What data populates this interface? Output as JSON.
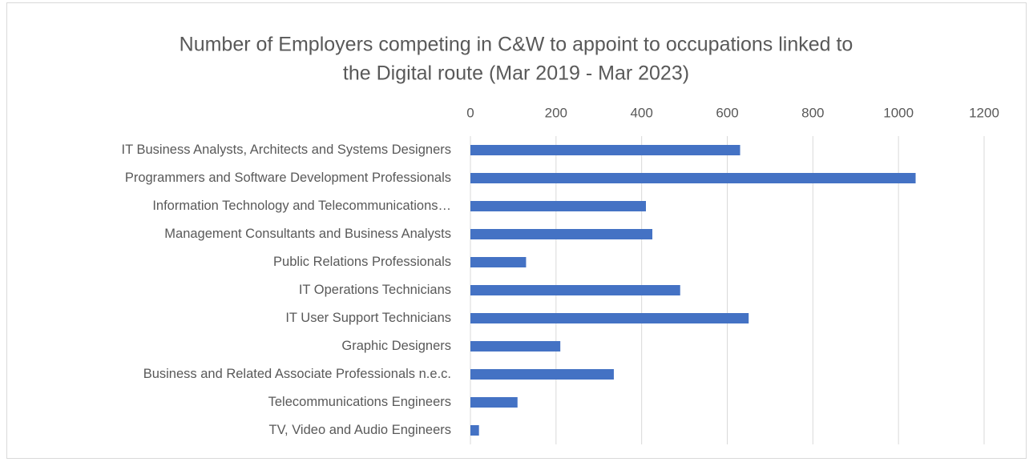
{
  "chart_data": {
    "type": "bar",
    "orientation": "horizontal",
    "title": [
      "Number of Employers competing in C&W to appoint to occupations linked to",
      "the Digital route (Mar 2019 - Mar 2023)"
    ],
    "categories": [
      "IT Business Analysts, Architects and Systems Designers",
      "Programmers and Software Development Professionals",
      "Information Technology and Telecommunications…",
      "Management Consultants and Business Analysts",
      "Public Relations Professionals",
      "IT Operations Technicians",
      "IT User Support Technicians",
      "Graphic Designers",
      "Business and Related Associate Professionals n.e.c.",
      "Telecommunications Engineers",
      "TV, Video and Audio Engineers"
    ],
    "values": [
      630,
      1040,
      410,
      425,
      130,
      490,
      650,
      210,
      335,
      110,
      20
    ],
    "color": "#4472c4",
    "xlim": [
      0,
      1200
    ],
    "xticks": [
      0,
      200,
      400,
      600,
      800,
      1000,
      1200
    ],
    "grid": true
  }
}
